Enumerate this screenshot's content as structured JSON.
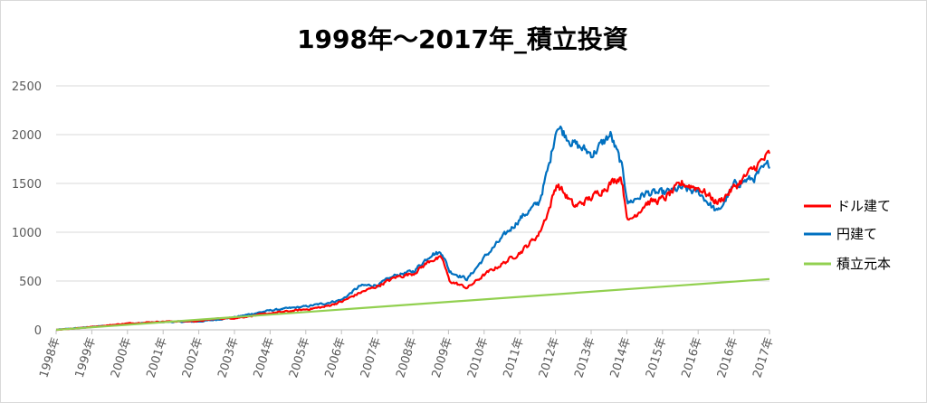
{
  "chart_data": {
    "type": "line",
    "title": "1998年～2017年_積立投資",
    "xlabel": "",
    "ylabel": "",
    "x_tick_labels": [
      "1998年",
      "1999年",
      "2000年",
      "2001年",
      "2002年",
      "2003年",
      "2004年",
      "2005年",
      "2006年",
      "2007年",
      "2008年",
      "2009年",
      "2010年",
      "2011年",
      "2012年",
      "2013年",
      "2014年",
      "2015年",
      "2016年",
      "2016年",
      "2017年"
    ],
    "x_range": [
      1998.0,
      2017.95
    ],
    "ylim": [
      0,
      2500
    ],
    "y_ticks": [
      0,
      500,
      1000,
      1500,
      2000,
      2500
    ],
    "grid": "horizontal",
    "legend_position": "right",
    "series": [
      {
        "name": "ドル建て",
        "color": "#ff0000",
        "x": [
          1998.0,
          1999.0,
          2000.0,
          2001.0,
          2002.0,
          2002.5,
          2003.0,
          2004.0,
          2005.0,
          2005.5,
          2006.0,
          2006.5,
          2007.0,
          2007.5,
          2008.0,
          2008.5,
          2008.8,
          2009.0,
          2009.5,
          2010.0,
          2010.5,
          2011.0,
          2011.5,
          2011.8,
          2012.0,
          2012.5,
          2013.0,
          2013.5,
          2013.8,
          2014.0,
          2014.5,
          2015.0,
          2015.5,
          2016.0,
          2016.5,
          2017.0,
          2017.5,
          2017.95
        ],
        "values": [
          0,
          30,
          65,
          85,
          90,
          115,
          120,
          170,
          210,
          235,
          290,
          380,
          450,
          540,
          580,
          720,
          730,
          500,
          430,
          570,
          680,
          800,
          980,
          1250,
          1500,
          1260,
          1360,
          1500,
          1580,
          1100,
          1300,
          1340,
          1500,
          1450,
          1300,
          1470,
          1650,
          1800
        ]
      },
      {
        "name": "円建て",
        "color": "#0070c0",
        "x": [
          1998.0,
          1999.0,
          2000.0,
          2001.0,
          2002.0,
          2002.5,
          2003.0,
          2004.0,
          2005.0,
          2005.5,
          2006.0,
          2006.5,
          2007.0,
          2007.5,
          2008.0,
          2008.5,
          2008.8,
          2009.0,
          2009.5,
          2010.0,
          2010.5,
          2011.0,
          2011.5,
          2011.8,
          2012.0,
          2012.5,
          2013.0,
          2013.5,
          2013.8,
          2014.0,
          2014.5,
          2015.0,
          2015.5,
          2016.0,
          2016.5,
          2017.0,
          2017.5,
          2017.95
        ],
        "values": [
          0,
          30,
          60,
          80,
          85,
          105,
          130,
          200,
          240,
          270,
          310,
          450,
          460,
          560,
          600,
          780,
          790,
          600,
          520,
          750,
          950,
          1150,
          1300,
          1700,
          2100,
          1900,
          1800,
          2000,
          1700,
          1300,
          1400,
          1400,
          1450,
          1400,
          1200,
          1500,
          1550,
          1700
        ]
      },
      {
        "name": "積立元本",
        "color": "#92d050",
        "x": [
          1998.0,
          2017.95
        ],
        "values": [
          0,
          520
        ]
      }
    ]
  }
}
